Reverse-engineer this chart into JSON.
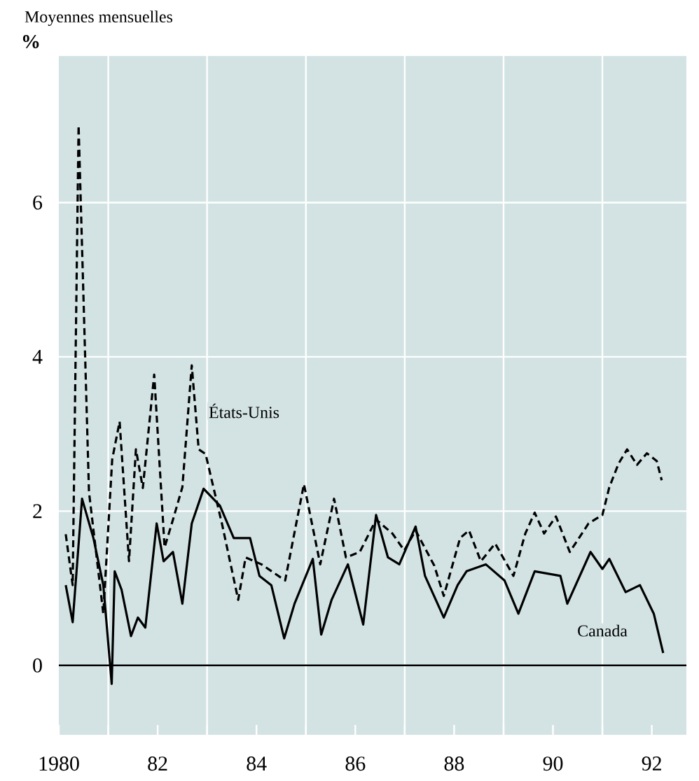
{
  "chart_data": {
    "type": "line",
    "title": "Moyennes mensuelles",
    "ylabel": "%",
    "xlim": [
      1980,
      1992.7
    ],
    "ylim": [
      -0.9,
      7.9
    ],
    "xticks": [
      {
        "value": 1980,
        "label": "1980"
      },
      {
        "value": 1981,
        "label": null
      },
      {
        "value": 1982,
        "label": "82"
      },
      {
        "value": 1983,
        "label": null
      },
      {
        "value": 1984,
        "label": "84"
      },
      {
        "value": 1985,
        "label": null
      },
      {
        "value": 1986,
        "label": "86"
      },
      {
        "value": 1987,
        "label": null
      },
      {
        "value": 1988,
        "label": "88"
      },
      {
        "value": 1989,
        "label": null
      },
      {
        "value": 1990,
        "label": "90"
      },
      {
        "value": 1991,
        "label": null
      },
      {
        "value": 1992,
        "label": "92"
      }
    ],
    "yticks": [
      0,
      2,
      4,
      6
    ],
    "grid": true,
    "marker": "none",
    "ref_lines": [
      {
        "axis": "y",
        "value": 0,
        "color": "#000000"
      }
    ],
    "series": [
      {
        "name": "États-Unis",
        "color": "#000000",
        "line_style": "dashed",
        "x": [
          1980.14,
          1980.28,
          1980.4,
          1980.61,
          1980.9,
          1981.08,
          1981.23,
          1981.42,
          1981.56,
          1981.7,
          1981.93,
          1982.14,
          1982.31,
          1982.5,
          1982.69,
          1982.83,
          1982.97,
          1983.3,
          1983.63,
          1983.78,
          1984.1,
          1984.58,
          1984.96,
          1985.29,
          1985.57,
          1985.81,
          1986.09,
          1986.42,
          1986.75,
          1986.99,
          1987.22,
          1987.6,
          1987.79,
          1988.12,
          1988.3,
          1988.54,
          1988.83,
          1989.2,
          1989.44,
          1989.63,
          1989.82,
          1990.06,
          1990.34,
          1990.72,
          1991.0,
          1991.14,
          1991.33,
          1991.5,
          1991.7,
          1991.9,
          1992.1,
          1992.2
        ],
        "values": [
          1.7,
          1.04,
          7.0,
          2.25,
          0.67,
          2.67,
          3.16,
          1.35,
          2.8,
          2.3,
          3.77,
          1.53,
          1.89,
          2.31,
          3.89,
          2.8,
          2.74,
          1.84,
          0.85,
          1.4,
          1.31,
          1.1,
          2.35,
          1.31,
          2.16,
          1.4,
          1.47,
          1.89,
          1.71,
          1.49,
          1.75,
          1.29,
          0.9,
          1.65,
          1.75,
          1.35,
          1.58,
          1.16,
          1.71,
          1.98,
          1.71,
          1.93,
          1.47,
          1.84,
          1.95,
          2.31,
          2.62,
          2.8,
          2.6,
          2.75,
          2.65,
          2.4
        ]
      },
      {
        "name": "Canada",
        "color": "#000000",
        "line_style": "solid",
        "x": [
          1980.14,
          1980.28,
          1980.47,
          1980.7,
          1980.9,
          1981.07,
          1981.13,
          1981.27,
          1981.46,
          1981.6,
          1981.75,
          1981.98,
          1982.12,
          1982.31,
          1982.5,
          1982.69,
          1982.93,
          1983.26,
          1983.54,
          1983.87,
          1984.06,
          1984.3,
          1984.56,
          1984.77,
          1985.14,
          1985.31,
          1985.52,
          1985.85,
          1986.16,
          1986.42,
          1986.66,
          1986.89,
          1987.22,
          1987.41,
          1987.79,
          1988.07,
          1988.25,
          1988.64,
          1989.02,
          1989.3,
          1989.63,
          1990.15,
          1990.29,
          1990.76,
          1991.0,
          1991.14,
          1991.47,
          1991.76,
          1992.04,
          1992.23
        ],
        "values": [
          1.04,
          0.56,
          2.16,
          1.65,
          1.04,
          -0.24,
          1.22,
          0.98,
          0.38,
          0.62,
          0.49,
          1.84,
          1.35,
          1.47,
          0.8,
          1.84,
          2.29,
          2.07,
          1.65,
          1.65,
          1.16,
          1.04,
          0.35,
          0.8,
          1.38,
          0.4,
          0.85,
          1.31,
          0.53,
          1.95,
          1.4,
          1.31,
          1.8,
          1.16,
          0.62,
          1.04,
          1.22,
          1.31,
          1.1,
          0.67,
          1.22,
          1.16,
          0.8,
          1.47,
          1.25,
          1.38,
          0.95,
          1.04,
          0.67,
          0.16
        ]
      }
    ]
  }
}
